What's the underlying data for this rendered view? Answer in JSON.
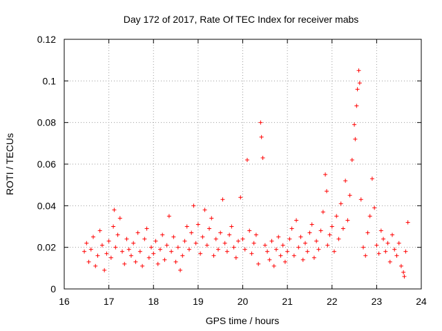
{
  "chart_data": {
    "type": "scatter",
    "title": "Day 172 of 2017, Rate Of TEC Index for receiver mabs",
    "xlabel": "GPS time / hours",
    "ylabel": "ROTI / TECUs",
    "xlim": [
      16,
      24
    ],
    "ylim": [
      0,
      0.12
    ],
    "x_ticks": [
      16,
      17,
      18,
      19,
      20,
      21,
      22,
      23,
      24
    ],
    "y_ticks": [
      0,
      0.02,
      0.04,
      0.06,
      0.08,
      0.1,
      0.12
    ],
    "x_tick_labels": [
      "16",
      "17",
      "18",
      "19",
      "20",
      "21",
      "22",
      "23",
      "24"
    ],
    "y_tick_labels": [
      "0",
      "0.02",
      "0.04",
      "0.06",
      "0.08",
      "0.1",
      "0.12"
    ],
    "grid": true,
    "marker": "+",
    "marker_color": "#ff0000",
    "series": [
      {
        "name": "ROTI",
        "points": [
          [
            16.45,
            0.018
          ],
          [
            16.5,
            0.022
          ],
          [
            16.55,
            0.013
          ],
          [
            16.6,
            0.019
          ],
          [
            16.65,
            0.025
          ],
          [
            16.7,
            0.011
          ],
          [
            16.75,
            0.016
          ],
          [
            16.8,
            0.028
          ],
          [
            16.85,
            0.021
          ],
          [
            16.9,
            0.009
          ],
          [
            16.95,
            0.017
          ],
          [
            17.0,
            0.023
          ],
          [
            17.05,
            0.015
          ],
          [
            17.1,
            0.03
          ],
          [
            17.12,
            0.038
          ],
          [
            17.15,
            0.02
          ],
          [
            17.2,
            0.026
          ],
          [
            17.25,
            0.034
          ],
          [
            17.3,
            0.018
          ],
          [
            17.35,
            0.012
          ],
          [
            17.4,
            0.024
          ],
          [
            17.45,
            0.019
          ],
          [
            17.5,
            0.016
          ],
          [
            17.55,
            0.022
          ],
          [
            17.6,
            0.013
          ],
          [
            17.65,
            0.027
          ],
          [
            17.7,
            0.018
          ],
          [
            17.75,
            0.011
          ],
          [
            17.8,
            0.024
          ],
          [
            17.85,
            0.029
          ],
          [
            17.9,
            0.015
          ],
          [
            17.95,
            0.02
          ],
          [
            18.0,
            0.017
          ],
          [
            18.05,
            0.023
          ],
          [
            18.1,
            0.012
          ],
          [
            18.15,
            0.019
          ],
          [
            18.2,
            0.026
          ],
          [
            18.25,
            0.014
          ],
          [
            18.3,
            0.021
          ],
          [
            18.35,
            0.035
          ],
          [
            18.4,
            0.018
          ],
          [
            18.45,
            0.025
          ],
          [
            18.5,
            0.013
          ],
          [
            18.55,
            0.02
          ],
          [
            18.6,
            0.009
          ],
          [
            18.65,
            0.016
          ],
          [
            18.7,
            0.023
          ],
          [
            18.75,
            0.03
          ],
          [
            18.8,
            0.019
          ],
          [
            18.85,
            0.027
          ],
          [
            18.9,
            0.04
          ],
          [
            18.95,
            0.022
          ],
          [
            19.0,
            0.031
          ],
          [
            19.05,
            0.017
          ],
          [
            19.1,
            0.025
          ],
          [
            19.15,
            0.038
          ],
          [
            19.2,
            0.021
          ],
          [
            19.25,
            0.029
          ],
          [
            19.3,
            0.034
          ],
          [
            19.35,
            0.016
          ],
          [
            19.4,
            0.024
          ],
          [
            19.45,
            0.019
          ],
          [
            19.5,
            0.027
          ],
          [
            19.55,
            0.043
          ],
          [
            19.6,
            0.022
          ],
          [
            19.65,
            0.018
          ],
          [
            19.7,
            0.026
          ],
          [
            19.75,
            0.03
          ],
          [
            19.8,
            0.02
          ],
          [
            19.85,
            0.015
          ],
          [
            19.9,
            0.023
          ],
          [
            19.95,
            0.044
          ],
          [
            20.0,
            0.024
          ],
          [
            20.05,
            0.019
          ],
          [
            20.1,
            0.062
          ],
          [
            20.15,
            0.028
          ],
          [
            20.2,
            0.017
          ],
          [
            20.25,
            0.022
          ],
          [
            20.3,
            0.026
          ],
          [
            20.35,
            0.012
          ],
          [
            20.4,
            0.08
          ],
          [
            20.42,
            0.073
          ],
          [
            20.45,
            0.063
          ],
          [
            20.5,
            0.021
          ],
          [
            20.55,
            0.018
          ],
          [
            20.6,
            0.014
          ],
          [
            20.65,
            0.023
          ],
          [
            20.7,
            0.011
          ],
          [
            20.75,
            0.019
          ],
          [
            20.8,
            0.025
          ],
          [
            20.85,
            0.016
          ],
          [
            20.9,
            0.021
          ],
          [
            20.95,
            0.013
          ],
          [
            21.0,
            0.018
          ],
          [
            21.05,
            0.024
          ],
          [
            21.1,
            0.029
          ],
          [
            21.15,
            0.016
          ],
          [
            21.2,
            0.033
          ],
          [
            21.25,
            0.02
          ],
          [
            21.3,
            0.025
          ],
          [
            21.35,
            0.014
          ],
          [
            21.4,
            0.022
          ],
          [
            21.45,
            0.018
          ],
          [
            21.5,
            0.027
          ],
          [
            21.55,
            0.031
          ],
          [
            21.6,
            0.015
          ],
          [
            21.65,
            0.023
          ],
          [
            21.7,
            0.019
          ],
          [
            21.75,
            0.028
          ],
          [
            21.8,
            0.037
          ],
          [
            21.85,
            0.055
          ],
          [
            21.88,
            0.047
          ],
          [
            21.9,
            0.021
          ],
          [
            21.95,
            0.026
          ],
          [
            22.0,
            0.03
          ],
          [
            22.05,
            0.018
          ],
          [
            22.1,
            0.035
          ],
          [
            22.15,
            0.024
          ],
          [
            22.2,
            0.041
          ],
          [
            22.25,
            0.029
          ],
          [
            22.3,
            0.052
          ],
          [
            22.35,
            0.033
          ],
          [
            22.4,
            0.045
          ],
          [
            22.45,
            0.062
          ],
          [
            22.5,
            0.079
          ],
          [
            22.52,
            0.072
          ],
          [
            22.55,
            0.088
          ],
          [
            22.57,
            0.096
          ],
          [
            22.6,
            0.105
          ],
          [
            22.62,
            0.099
          ],
          [
            22.65,
            0.043
          ],
          [
            22.7,
            0.02
          ],
          [
            22.75,
            0.016
          ],
          [
            22.8,
            0.027
          ],
          [
            22.85,
            0.035
          ],
          [
            22.9,
            0.053
          ],
          [
            22.95,
            0.039
          ],
          [
            23.0,
            0.021
          ],
          [
            23.05,
            0.017
          ],
          [
            23.1,
            0.028
          ],
          [
            23.15,
            0.024
          ],
          [
            23.2,
            0.018
          ],
          [
            23.25,
            0.022
          ],
          [
            23.3,
            0.013
          ],
          [
            23.35,
            0.026
          ],
          [
            23.4,
            0.019
          ],
          [
            23.45,
            0.016
          ],
          [
            23.5,
            0.022
          ],
          [
            23.55,
            0.011
          ],
          [
            23.6,
            0.008
          ],
          [
            23.62,
            0.006
          ],
          [
            23.65,
            0.018
          ],
          [
            23.7,
            0.032
          ]
        ]
      }
    ]
  }
}
